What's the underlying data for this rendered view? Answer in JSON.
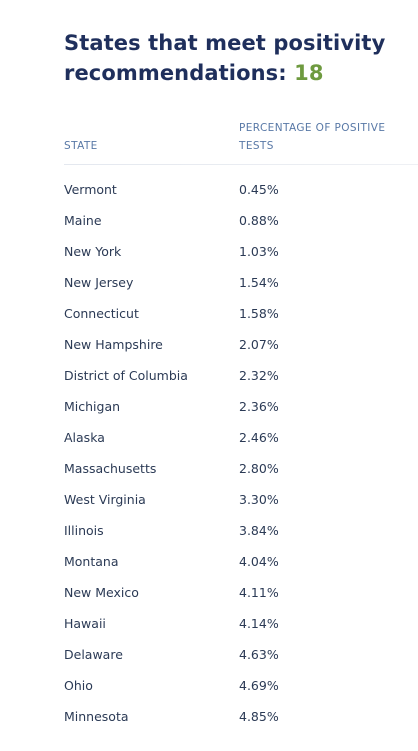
{
  "heading": {
    "text": "States that meet positivity recommendations: ",
    "count": "18"
  },
  "table": {
    "columns": {
      "state": "STATE",
      "percentage": "PERCENTAGE OF POSITIVE TESTS"
    },
    "rows": [
      {
        "state": "Vermont",
        "pct": "0.45%"
      },
      {
        "state": "Maine",
        "pct": "0.88%"
      },
      {
        "state": "New York",
        "pct": "1.03%"
      },
      {
        "state": "New Jersey",
        "pct": "1.54%"
      },
      {
        "state": "Connecticut",
        "pct": "1.58%"
      },
      {
        "state": "New Hampshire",
        "pct": "2.07%"
      },
      {
        "state": "District of Columbia",
        "pct": "2.32%"
      },
      {
        "state": "Michigan",
        "pct": "2.36%"
      },
      {
        "state": "Alaska",
        "pct": "2.46%"
      },
      {
        "state": "Massachusetts",
        "pct": "2.80%"
      },
      {
        "state": "West Virginia",
        "pct": "3.30%"
      },
      {
        "state": "Illinois",
        "pct": "3.84%"
      },
      {
        "state": "Montana",
        "pct": "4.04%"
      },
      {
        "state": "New Mexico",
        "pct": "4.11%"
      },
      {
        "state": "Hawaii",
        "pct": "4.14%"
      },
      {
        "state": "Delaware",
        "pct": "4.63%"
      },
      {
        "state": "Ohio",
        "pct": "4.69%"
      },
      {
        "state": "Minnesota",
        "pct": "4.85%"
      }
    ]
  },
  "colors": {
    "heading": "#1f2f5c",
    "count": "#6e9a3f",
    "column_header": "#5878a6",
    "cell_text": "#2b3a55"
  }
}
